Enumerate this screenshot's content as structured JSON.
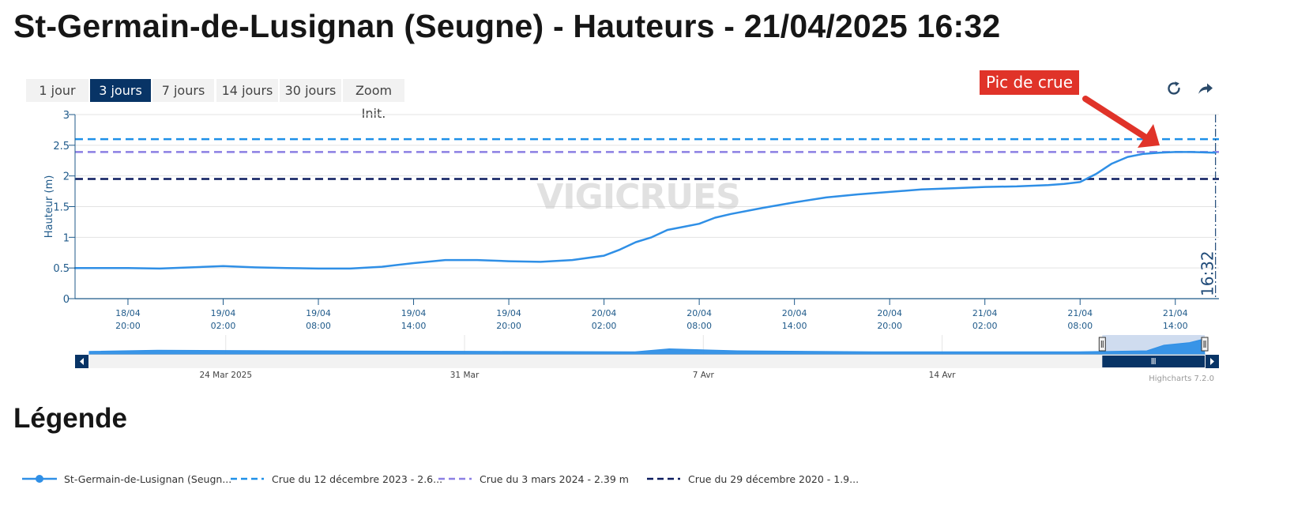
{
  "page": {
    "title": "St-Germain-de-Lusignan (Seugne) - Hauteurs - 21/04/2025 16:32",
    "legend_heading": "Légende"
  },
  "range_selector": {
    "buttons": [
      {
        "label": "1 jour",
        "active": false
      },
      {
        "label": "3 jours",
        "active": true
      },
      {
        "label": "7 jours",
        "active": false
      },
      {
        "label": "14 jours",
        "active": false
      },
      {
        "label": "30 jours",
        "active": false
      },
      {
        "label": "Zoom Init.",
        "active": false
      }
    ]
  },
  "toolbar": {
    "icons": [
      "refresh-icon",
      "share-icon"
    ]
  },
  "annotation": {
    "label": "Pic de crue",
    "color": "#e03329"
  },
  "watermark": "VIGICRUES",
  "now_marker": {
    "label": "16:32"
  },
  "credits": "Highcharts 7.2.0",
  "colors": {
    "series": "#2f8fe6",
    "crue_2023": "#1e90e8",
    "crue_2024": "#8b7fe3",
    "crue_2020": "#0a1a5e",
    "axis": "#1f5a8a",
    "range_active": "#083466"
  },
  "legend": [
    {
      "label": "St-Germain-de-Lusignan (Seugn...",
      "color": "#2f8fe6",
      "style": "solid-marker"
    },
    {
      "label": "Crue du 12 décembre 2023 - 2.6...",
      "color": "#1e90e8",
      "style": "dash"
    },
    {
      "label": "Crue du 3 mars 2024 - 2.39 m",
      "color": "#8b7fe3",
      "style": "dash"
    },
    {
      "label": "Crue du 29 décembre 2020 - 1.9...",
      "color": "#0a1a5e",
      "style": "dash"
    }
  ],
  "chart_data": {
    "type": "line",
    "title": "St-Germain-de-Lusignan (Seugne) - Hauteurs - 21/04/2025 16:32",
    "xlabel": "",
    "ylabel": "Hauteur (m)",
    "ylim": [
      0,
      3
    ],
    "yticks": [
      0,
      0.5,
      1,
      1.5,
      2,
      2.5,
      3
    ],
    "xlim": [
      "2025-04-18T16:40",
      "2025-04-21T16:45"
    ],
    "xtick_labels": [
      {
        "x": "2025-04-18T20:00",
        "label": "18/04 20:00"
      },
      {
        "x": "2025-04-19T02:00",
        "label": "19/04 02:00"
      },
      {
        "x": "2025-04-19T08:00",
        "label": "19/04 08:00"
      },
      {
        "x": "2025-04-19T14:00",
        "label": "19/04 14:00"
      },
      {
        "x": "2025-04-19T20:00",
        "label": "19/04 20:00"
      },
      {
        "x": "2025-04-20T02:00",
        "label": "20/04 02:00"
      },
      {
        "x": "2025-04-20T08:00",
        "label": "20/04 08:00"
      },
      {
        "x": "2025-04-20T14:00",
        "label": "20/04 14:00"
      },
      {
        "x": "2025-04-20T20:00",
        "label": "20/04 20:00"
      },
      {
        "x": "2025-04-21T02:00",
        "label": "21/04 02:00"
      },
      {
        "x": "2025-04-21T08:00",
        "label": "21/04 08:00"
      },
      {
        "x": "2025-04-21T14:00",
        "label": "21/04 14:00"
      }
    ],
    "grid": true,
    "legend_position": "bottom",
    "series": [
      {
        "name": "St-Germain-de-Lusignan (Seugne)",
        "points": [
          [
            "2025-04-18T16:40",
            0.5
          ],
          [
            "2025-04-18T20:00",
            0.5
          ],
          [
            "2025-04-18T22:00",
            0.49
          ],
          [
            "2025-04-19T00:00",
            0.51
          ],
          [
            "2025-04-19T02:00",
            0.53
          ],
          [
            "2025-04-19T04:00",
            0.51
          ],
          [
            "2025-04-19T06:00",
            0.5
          ],
          [
            "2025-04-19T08:00",
            0.49
          ],
          [
            "2025-04-19T10:00",
            0.49
          ],
          [
            "2025-04-19T12:00",
            0.52
          ],
          [
            "2025-04-19T14:00",
            0.58
          ],
          [
            "2025-04-19T16:00",
            0.63
          ],
          [
            "2025-04-19T18:00",
            0.63
          ],
          [
            "2025-04-19T20:00",
            0.61
          ],
          [
            "2025-04-19T22:00",
            0.6
          ],
          [
            "2025-04-20T00:00",
            0.63
          ],
          [
            "2025-04-20T02:00",
            0.7
          ],
          [
            "2025-04-20T03:00",
            0.8
          ],
          [
            "2025-04-20T04:00",
            0.92
          ],
          [
            "2025-04-20T05:00",
            1.0
          ],
          [
            "2025-04-20T06:00",
            1.12
          ],
          [
            "2025-04-20T07:00",
            1.17
          ],
          [
            "2025-04-20T08:00",
            1.22
          ],
          [
            "2025-04-20T09:00",
            1.32
          ],
          [
            "2025-04-20T10:00",
            1.38
          ],
          [
            "2025-04-20T12:00",
            1.48
          ],
          [
            "2025-04-20T14:00",
            1.57
          ],
          [
            "2025-04-20T16:00",
            1.65
          ],
          [
            "2025-04-20T18:00",
            1.7
          ],
          [
            "2025-04-20T20:00",
            1.74
          ],
          [
            "2025-04-20T22:00",
            1.78
          ],
          [
            "2025-04-21T00:00",
            1.8
          ],
          [
            "2025-04-21T02:00",
            1.82
          ],
          [
            "2025-04-21T04:00",
            1.83
          ],
          [
            "2025-04-21T06:00",
            1.85
          ],
          [
            "2025-04-21T07:00",
            1.87
          ],
          [
            "2025-04-21T08:00",
            1.9
          ],
          [
            "2025-04-21T09:00",
            2.03
          ],
          [
            "2025-04-21T10:00",
            2.2
          ],
          [
            "2025-04-21T11:00",
            2.31
          ],
          [
            "2025-04-21T12:00",
            2.36
          ],
          [
            "2025-04-21T13:00",
            2.38
          ],
          [
            "2025-04-21T14:00",
            2.39
          ],
          [
            "2025-04-21T15:00",
            2.39
          ],
          [
            "2025-04-21T16:32",
            2.38
          ]
        ]
      }
    ],
    "reference_lines": [
      {
        "name": "Crue du 12 décembre 2023 - 2.6...",
        "value": 2.6,
        "style": "dash"
      },
      {
        "name": "Crue du 3 mars 2024 - 2.39 m",
        "value": 2.39,
        "style": "dash"
      },
      {
        "name": "Crue du 29 décembre 2020 - 1.9...",
        "value": 1.95,
        "style": "dash"
      }
    ],
    "navigator": {
      "labels": [
        {
          "x": "2025-03-24",
          "label": "24 Mar 2025"
        },
        {
          "x": "2025-03-31",
          "label": "31 Mar"
        },
        {
          "x": "2025-04-07",
          "label": "7 Avr"
        },
        {
          "x": "2025-04-14",
          "label": "14 Avr"
        }
      ],
      "xlim": [
        "2025-03-20T00:00",
        "2025-04-21T16:45"
      ],
      "selected_range": [
        "2025-04-18T16:40",
        "2025-04-21T16:45"
      ],
      "approx_points": [
        [
          "2025-03-20",
          0.5
        ],
        [
          "2025-03-22",
          0.7
        ],
        [
          "2025-03-26",
          0.6
        ],
        [
          "2025-04-01",
          0.5
        ],
        [
          "2025-04-05",
          0.45
        ],
        [
          "2025-04-06",
          0.9
        ],
        [
          "2025-04-08",
          0.6
        ],
        [
          "2025-04-12",
          0.45
        ],
        [
          "2025-04-18",
          0.45
        ],
        [
          "2025-04-20T00:00",
          0.6
        ],
        [
          "2025-04-20T12:00",
          1.45
        ],
        [
          "2025-04-21T06:00",
          1.85
        ],
        [
          "2025-04-21T16:00",
          2.39
        ]
      ]
    }
  }
}
